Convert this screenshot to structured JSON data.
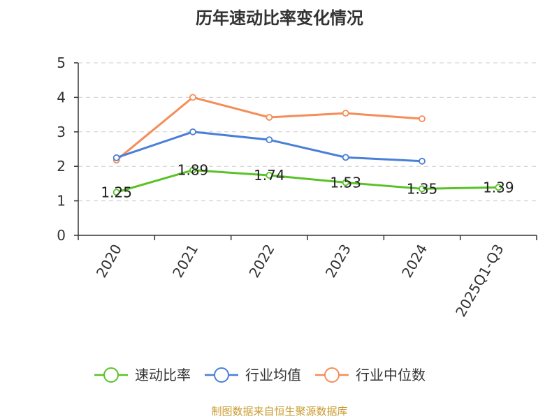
{
  "chart_data": {
    "type": "line",
    "title": "历年速动比率变化情况",
    "categories": [
      "2020",
      "2021",
      "2022",
      "2023",
      "2024",
      "2025Q1-Q3"
    ],
    "ylim": [
      0,
      5
    ],
    "yticks": [
      0,
      1,
      2,
      3,
      4,
      5
    ],
    "grid": true,
    "legend_position": "bottom",
    "series": [
      {
        "name": "速动比率",
        "color": "#5ac229",
        "values": [
          1.25,
          1.89,
          1.74,
          1.53,
          1.35,
          1.39
        ],
        "labels": [
          "1.25",
          "1.89",
          "1.74",
          "1.53",
          "1.35",
          "1.39"
        ]
      },
      {
        "name": "行业均值",
        "color": "#4a7fd8",
        "values": [
          2.25,
          3.0,
          2.77,
          2.26,
          2.15,
          null
        ]
      },
      {
        "name": "行业中位数",
        "color": "#f58d58",
        "values": [
          2.18,
          4.0,
          3.42,
          3.54,
          3.38,
          null
        ]
      }
    ],
    "source": "制图数据来自恒生聚源数据库"
  }
}
